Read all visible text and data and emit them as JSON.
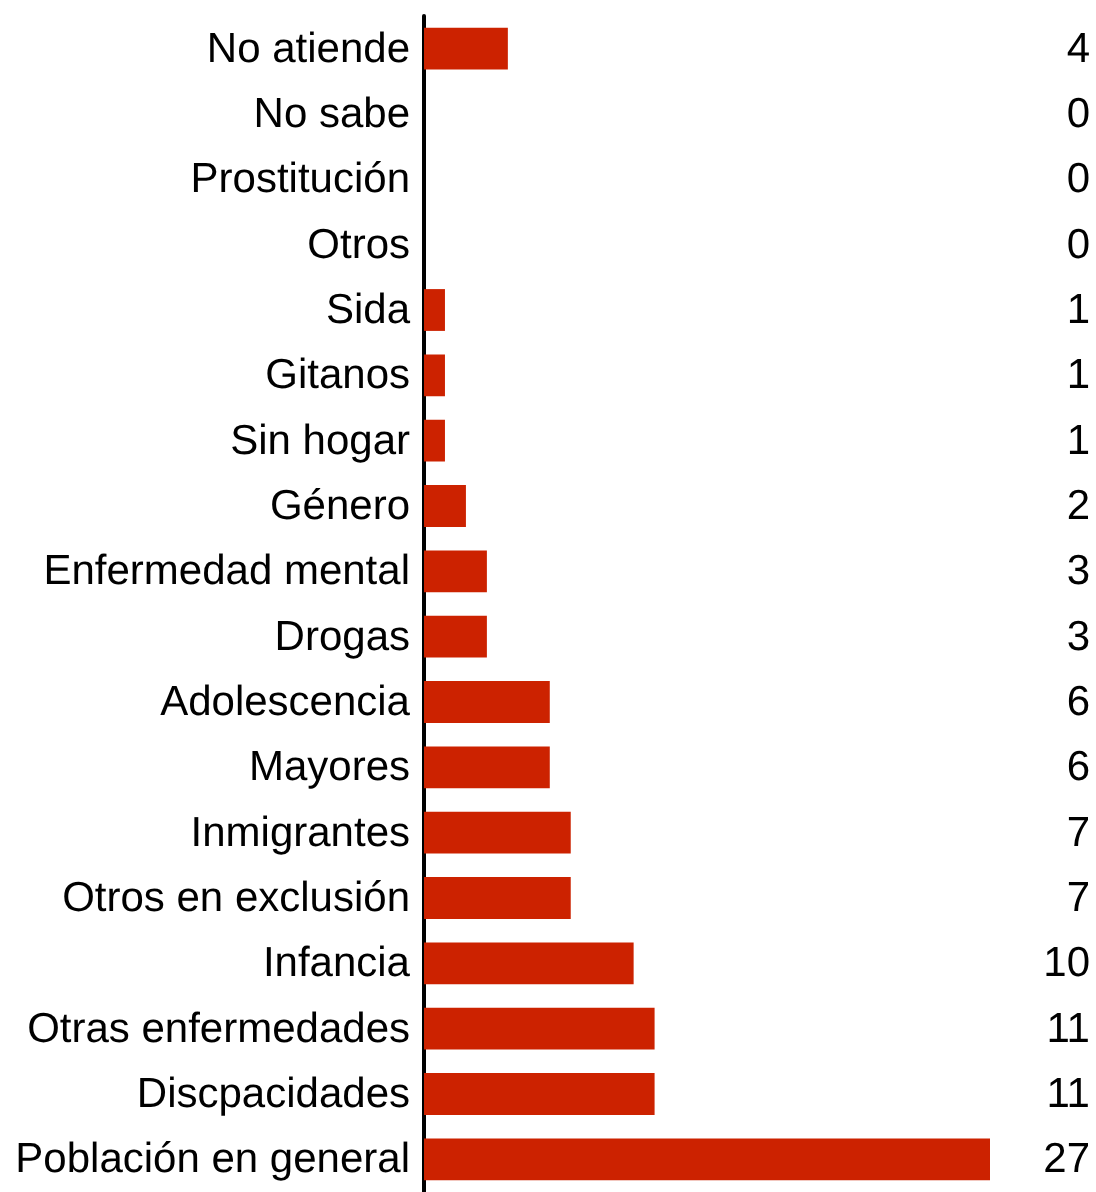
{
  "chart_data": {
    "type": "bar",
    "orientation": "horizontal",
    "categories": [
      "No atiende",
      "No sabe",
      "Prostitución",
      "Otros",
      "Sida",
      "Gitanos",
      "Sin hogar",
      "Género",
      "Enfermedad mental",
      "Drogas",
      "Adolescencia",
      "Mayores",
      "Inmigrantes",
      "Otros en exclusión",
      "Infancia",
      "Otras enfermedades",
      "Discpacidades",
      "Población en general"
    ],
    "values": [
      4,
      0,
      0,
      0,
      1,
      1,
      1,
      2,
      3,
      3,
      6,
      6,
      7,
      7,
      10,
      11,
      11,
      27
    ],
    "color": "#cc2200",
    "data_labels": true,
    "tick_labels": "y"
  }
}
